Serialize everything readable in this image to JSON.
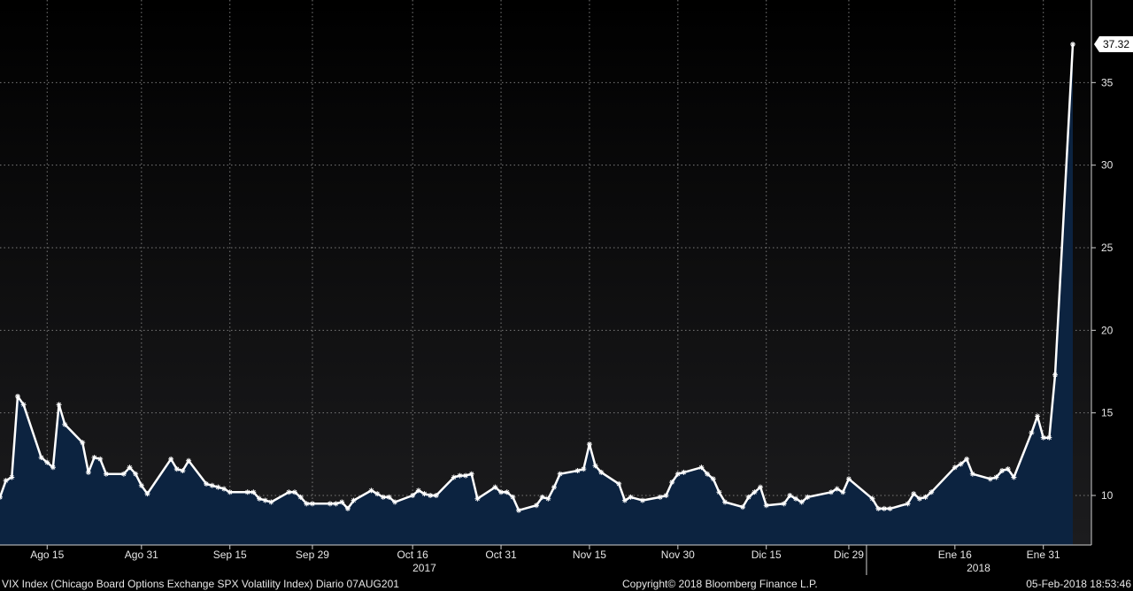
{
  "chart_data": {
    "type": "area",
    "title": "",
    "xlabel": "",
    "ylabel": "",
    "ylim": [
      7,
      40
    ],
    "y_ticks": [
      10,
      15,
      20,
      25,
      30,
      35
    ],
    "grid": true,
    "x_ticks": [
      {
        "label": "Ago 15",
        "date": "2017-08-15"
      },
      {
        "label": "Ago 31",
        "date": "2017-08-31"
      },
      {
        "label": "Sep 15",
        "date": "2017-09-15"
      },
      {
        "label": "Sep 29",
        "date": "2017-09-29"
      },
      {
        "label": "Oct 16",
        "date": "2017-10-16"
      },
      {
        "label": "Oct 31",
        "date": "2017-10-31"
      },
      {
        "label": "Nov 15",
        "date": "2017-11-15"
      },
      {
        "label": "Nov 30",
        "date": "2017-11-30"
      },
      {
        "label": "Dic 15",
        "date": "2017-12-15"
      },
      {
        "label": "Dic 29",
        "date": "2017-12-29"
      },
      {
        "label": "Ene 16",
        "date": "2018-01-16"
      },
      {
        "label": "Ene 31",
        "date": "2018-01-31"
      }
    ],
    "year_labels": [
      {
        "label": "2017",
        "date": "2017-10-18"
      },
      {
        "label": "2018",
        "date": "2018-01-20"
      }
    ],
    "last_value_label": "37.32",
    "colors": {
      "line": "#ffffff",
      "area": "#0c2340",
      "background_top": "#000000",
      "background_bottom": "#1c1c1e",
      "grid": "#7a7a7a"
    },
    "series": [
      {
        "x": [
          "2017-08-07",
          "2017-08-08",
          "2017-08-09",
          "2017-08-10",
          "2017-08-11",
          "2017-08-14",
          "2017-08-15",
          "2017-08-16",
          "2017-08-17",
          "2017-08-18",
          "2017-08-21",
          "2017-08-22",
          "2017-08-23",
          "2017-08-24",
          "2017-08-25",
          "2017-08-28",
          "2017-08-29",
          "2017-08-30",
          "2017-08-31",
          "2017-09-01",
          "2017-09-05",
          "2017-09-06",
          "2017-09-07",
          "2017-09-08",
          "2017-09-11",
          "2017-09-12",
          "2017-09-13",
          "2017-09-14",
          "2017-09-15",
          "2017-09-18",
          "2017-09-19",
          "2017-09-20",
          "2017-09-21",
          "2017-09-22",
          "2017-09-25",
          "2017-09-26",
          "2017-09-27",
          "2017-09-28",
          "2017-09-29",
          "2017-10-02",
          "2017-10-03",
          "2017-10-04",
          "2017-10-05",
          "2017-10-06",
          "2017-10-09",
          "2017-10-10",
          "2017-10-11",
          "2017-10-12",
          "2017-10-13",
          "2017-10-16",
          "2017-10-17",
          "2017-10-18",
          "2017-10-19",
          "2017-10-20",
          "2017-10-23",
          "2017-10-24",
          "2017-10-25",
          "2017-10-26",
          "2017-10-27",
          "2017-10-30",
          "2017-10-31",
          "2017-11-01",
          "2017-11-02",
          "2017-11-03",
          "2017-11-06",
          "2017-11-07",
          "2017-11-08",
          "2017-11-09",
          "2017-11-10",
          "2017-11-13",
          "2017-11-14",
          "2017-11-15",
          "2017-11-16",
          "2017-11-17",
          "2017-11-20",
          "2017-11-21",
          "2017-11-22",
          "2017-11-24",
          "2017-11-27",
          "2017-11-28",
          "2017-11-29",
          "2017-11-30",
          "2017-12-01",
          "2017-12-04",
          "2017-12-05",
          "2017-12-06",
          "2017-12-07",
          "2017-12-08",
          "2017-12-11",
          "2017-12-12",
          "2017-12-13",
          "2017-12-14",
          "2017-12-15",
          "2017-12-18",
          "2017-12-19",
          "2017-12-20",
          "2017-12-21",
          "2017-12-22",
          "2017-12-26",
          "2017-12-27",
          "2017-12-28",
          "2017-12-29",
          "2018-01-02",
          "2018-01-03",
          "2018-01-04",
          "2018-01-05",
          "2018-01-08",
          "2018-01-09",
          "2018-01-10",
          "2018-01-11",
          "2018-01-12",
          "2018-01-16",
          "2018-01-17",
          "2018-01-18",
          "2018-01-19",
          "2018-01-22",
          "2018-01-23",
          "2018-01-24",
          "2018-01-25",
          "2018-01-26",
          "2018-01-29",
          "2018-01-30",
          "2018-01-31",
          "2018-02-01",
          "2018-02-02",
          "2018-02-05"
        ],
        "values": [
          9.9,
          10.9,
          11.1,
          16.0,
          15.5,
          12.3,
          12.0,
          11.7,
          15.5,
          14.3,
          13.2,
          11.4,
          12.3,
          12.2,
          11.3,
          11.3,
          11.7,
          11.3,
          10.6,
          10.1,
          12.2,
          11.6,
          11.5,
          12.1,
          10.7,
          10.6,
          10.5,
          10.4,
          10.2,
          10.2,
          10.2,
          9.8,
          9.7,
          9.6,
          10.2,
          10.2,
          9.9,
          9.5,
          9.5,
          9.5,
          9.5,
          9.6,
          9.2,
          9.7,
          10.3,
          10.1,
          9.9,
          9.9,
          9.6,
          10.0,
          10.3,
          10.1,
          10.0,
          10.0,
          11.1,
          11.2,
          11.2,
          11.3,
          9.8,
          10.5,
          10.2,
          10.2,
          9.9,
          9.1,
          9.4,
          9.9,
          9.8,
          10.5,
          11.3,
          11.5,
          11.6,
          13.1,
          11.8,
          11.4,
          10.7,
          9.7,
          9.9,
          9.7,
          9.9,
          10.0,
          10.8,
          11.3,
          11.4,
          11.7,
          11.3,
          11.0,
          10.2,
          9.6,
          9.3,
          9.9,
          10.2,
          10.5,
          9.4,
          9.5,
          10.0,
          9.8,
          9.6,
          9.9,
          10.2,
          10.4,
          10.2,
          11.0,
          9.8,
          9.2,
          9.2,
          9.2,
          9.5,
          10.1,
          9.8,
          9.9,
          10.2,
          11.7,
          11.9,
          12.2,
          11.3,
          11.0,
          11.1,
          11.5,
          11.6,
          11.1,
          13.8,
          14.8,
          13.5,
          13.5,
          17.3,
          37.32
        ]
      }
    ]
  },
  "footer": {
    "left": "VIX Index (Chicago Board Options Exchange SPX Volatility Index)  Diario 07AUG201",
    "center": "Copyright© 2018 Bloomberg Finance L.P.",
    "right": "05-Feb-2018 18:53:46"
  }
}
